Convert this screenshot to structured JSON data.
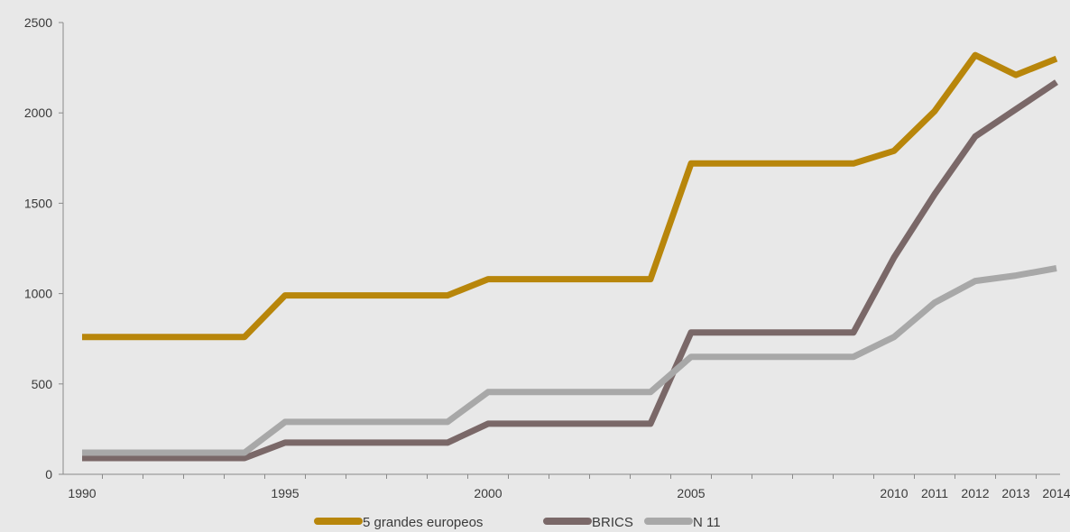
{
  "chart_data": {
    "type": "line",
    "title": "",
    "xlabel": "",
    "ylabel": "",
    "ylim": [
      0,
      2500
    ],
    "yticks": [
      0,
      500,
      1000,
      1500,
      2000,
      2500
    ],
    "grid": false,
    "legend_position": "bottom",
    "x": [
      1990,
      1991,
      1992,
      1993,
      1994,
      1995,
      1996,
      1997,
      1998,
      1999,
      2000,
      2001,
      2002,
      2003,
      2004,
      2005,
      2006,
      2007,
      2008,
      2009,
      2010,
      2011,
      2012,
      2013,
      2014
    ],
    "xtick_labels": [
      {
        "x": 1990,
        "label": "1990"
      },
      {
        "x": 1995,
        "label": "1995"
      },
      {
        "x": 2000,
        "label": "2000"
      },
      {
        "x": 2005,
        "label": "2005"
      },
      {
        "x": 2010,
        "label": "2010"
      },
      {
        "x": 2011,
        "label": "2011"
      },
      {
        "x": 2012,
        "label": "2012"
      },
      {
        "x": 2013,
        "label": "2013"
      },
      {
        "x": 2014,
        "label": "2014"
      }
    ],
    "series": [
      {
        "name": "5 grandes europeos",
        "color": "#b8860b",
        "values": [
          760,
          760,
          760,
          760,
          760,
          990,
          990,
          990,
          990,
          990,
          1080,
          1080,
          1080,
          1080,
          1080,
          1720,
          1720,
          1720,
          1720,
          1720,
          1790,
          2010,
          2320,
          2210,
          2300
        ]
      },
      {
        "name": "BRICS",
        "color": "#7a6868",
        "values": [
          90,
          90,
          90,
          90,
          90,
          175,
          175,
          175,
          175,
          175,
          280,
          280,
          280,
          280,
          280,
          785,
          785,
          785,
          785,
          785,
          1200,
          1550,
          1870,
          2020,
          2170
        ]
      },
      {
        "name": "N 11",
        "color": "#a8a8a8",
        "values": [
          120,
          120,
          120,
          120,
          120,
          290,
          290,
          290,
          290,
          290,
          455,
          455,
          455,
          455,
          455,
          650,
          650,
          650,
          650,
          650,
          760,
          950,
          1070,
          1100,
          1140
        ]
      }
    ]
  }
}
